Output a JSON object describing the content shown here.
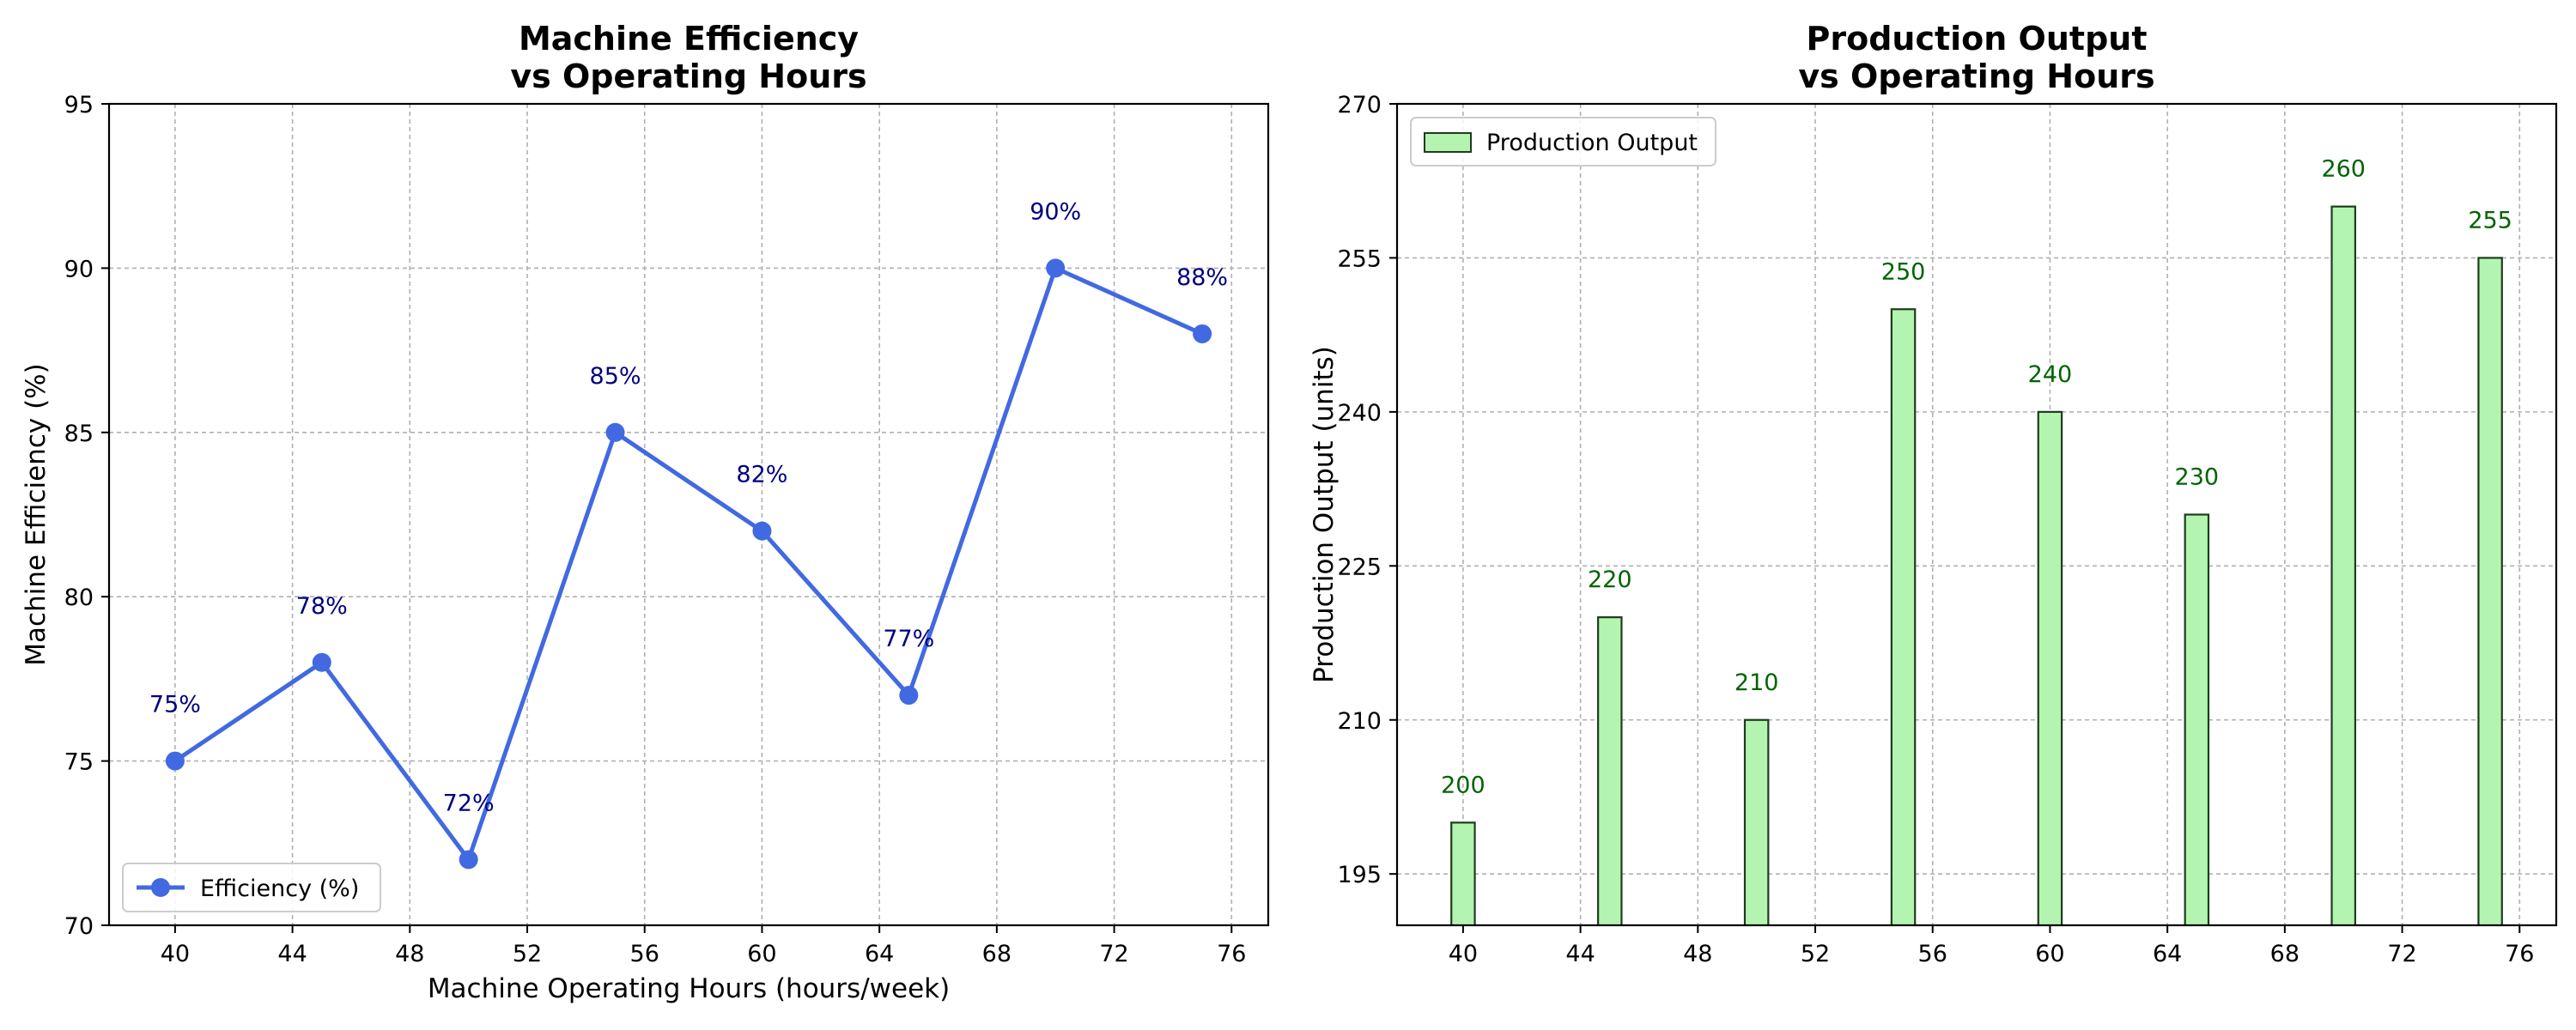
{
  "chart_data": [
    {
      "type": "line",
      "title_line1": "Machine Efficiency",
      "title_line2": "vs Operating Hours",
      "xlabel": "Machine Operating Hours (hours/week)",
      "ylabel": "Machine Efficiency (%)",
      "xlim": [
        37.75,
        77.25
      ],
      "ylim": [
        70,
        95
      ],
      "xticks": [
        40,
        44,
        48,
        52,
        56,
        60,
        64,
        68,
        72,
        76
      ],
      "yticks": [
        70,
        75,
        80,
        85,
        90,
        95
      ],
      "grid": true,
      "legend_position": "bottom-left",
      "series": [
        {
          "name": "Efficiency (%)",
          "color": "#4169e1",
          "x": [
            40,
            45,
            50,
            55,
            60,
            65,
            70,
            75
          ],
          "y": [
            75,
            78,
            72,
            85,
            82,
            77,
            90,
            88
          ]
        }
      ],
      "data_labels": [
        "75%",
        "78%",
        "72%",
        "85%",
        "82%",
        "77%",
        "90%",
        "88%"
      ],
      "label_color": "#000080"
    },
    {
      "type": "bar",
      "title_line1": "Production Output",
      "title_line2": "vs Operating Hours",
      "xlabel": "",
      "ylabel": "Production Output (units)",
      "xlim": [
        37.75,
        77.25
      ],
      "ylim": [
        190,
        270
      ],
      "xticks": [
        40,
        44,
        48,
        52,
        56,
        60,
        64,
        68,
        72,
        76
      ],
      "yticks": [
        195,
        210,
        225,
        240,
        255,
        270
      ],
      "grid": true,
      "legend_position": "top-left",
      "bar_width": 0.8,
      "series": [
        {
          "name": "Production Output",
          "color": "#b3f5b0",
          "edge_color": "#1f3b1f",
          "x": [
            40,
            45,
            50,
            55,
            60,
            65,
            70,
            75
          ],
          "values": [
            200,
            220,
            210,
            250,
            240,
            230,
            260,
            255
          ]
        }
      ],
      "data_labels": [
        "200",
        "220",
        "210",
        "250",
        "240",
        "230",
        "260",
        "255"
      ],
      "label_color": "#006400"
    }
  ]
}
